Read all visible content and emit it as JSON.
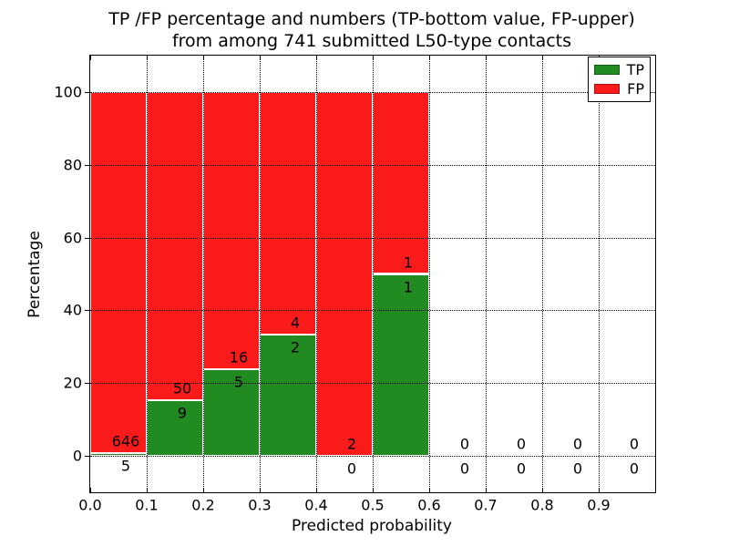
{
  "title_line1": "TP /FP percentage and numbers (TP-bottom value, FP-upper)",
  "title_line2": "from among 741 submitted L50-type contacts",
  "xlabel": "Predicted probability",
  "ylabel": "Percentage",
  "legend": {
    "items": [
      {
        "label": "TP",
        "color": "#218a21"
      },
      {
        "label": "FP",
        "color": "#fb1b1b"
      }
    ]
  },
  "chart_data": {
    "type": "bar",
    "stacked": true,
    "title": "TP /FP percentage and numbers (TP-bottom value, FP-upper) from among 741 submitted L50-type contacts",
    "xlabel": "Predicted probability",
    "ylabel": "Percentage",
    "total_contacts": 741,
    "xlim": [
      0.0,
      1.0
    ],
    "ylim": [
      -10,
      110
    ],
    "x_tick_labels": [
      "0.0",
      "0.1",
      "0.2",
      "0.3",
      "0.4",
      "0.5",
      "0.6",
      "0.7",
      "0.8",
      "0.9"
    ],
    "x_tick_values": [
      0.0,
      0.1,
      0.2,
      0.3,
      0.4,
      0.5,
      0.6,
      0.7,
      0.8,
      0.9
    ],
    "y_tick_values": [
      0,
      20,
      40,
      60,
      80,
      100
    ],
    "grid": "dotted",
    "legend_position": "upper right",
    "colors": {
      "tp": "#218a21",
      "fp": "#fb1b1b",
      "bar_edge": "#ffffff"
    },
    "series_names": [
      "TP",
      "FP"
    ],
    "bins": [
      {
        "range": [
          0.0,
          0.1
        ],
        "tp_count": 5,
        "fp_count": 646,
        "tp_pct": 0.77,
        "fp_pct": 99.23,
        "has_bar": true
      },
      {
        "range": [
          0.1,
          0.2
        ],
        "tp_count": 9,
        "fp_count": 50,
        "tp_pct": 15.25,
        "fp_pct": 84.75,
        "has_bar": true
      },
      {
        "range": [
          0.2,
          0.3
        ],
        "tp_count": 5,
        "fp_count": 16,
        "tp_pct": 23.81,
        "fp_pct": 76.19,
        "has_bar": true
      },
      {
        "range": [
          0.3,
          0.4
        ],
        "tp_count": 2,
        "fp_count": 4,
        "tp_pct": 33.33,
        "fp_pct": 66.67,
        "has_bar": true
      },
      {
        "range": [
          0.4,
          0.5
        ],
        "tp_count": 0,
        "fp_count": 2,
        "tp_pct": 0,
        "fp_pct": 100,
        "has_bar": true
      },
      {
        "range": [
          0.5,
          0.6
        ],
        "tp_count": 1,
        "fp_count": 1,
        "tp_pct": 50,
        "fp_pct": 50,
        "has_bar": true
      },
      {
        "range": [
          0.6,
          0.7
        ],
        "tp_count": 0,
        "fp_count": 0,
        "tp_pct": 0,
        "fp_pct": 0,
        "has_bar": false
      },
      {
        "range": [
          0.7,
          0.8
        ],
        "tp_count": 0,
        "fp_count": 0,
        "tp_pct": 0,
        "fp_pct": 0,
        "has_bar": false
      },
      {
        "range": [
          0.8,
          0.9
        ],
        "tp_count": 0,
        "fp_count": 0,
        "tp_pct": 0,
        "fp_pct": 0,
        "has_bar": false
      },
      {
        "range": [
          0.9,
          1.0
        ],
        "tp_count": 0,
        "fp_count": 0,
        "tp_pct": 0,
        "fp_pct": 0,
        "has_bar": false
      }
    ]
  }
}
